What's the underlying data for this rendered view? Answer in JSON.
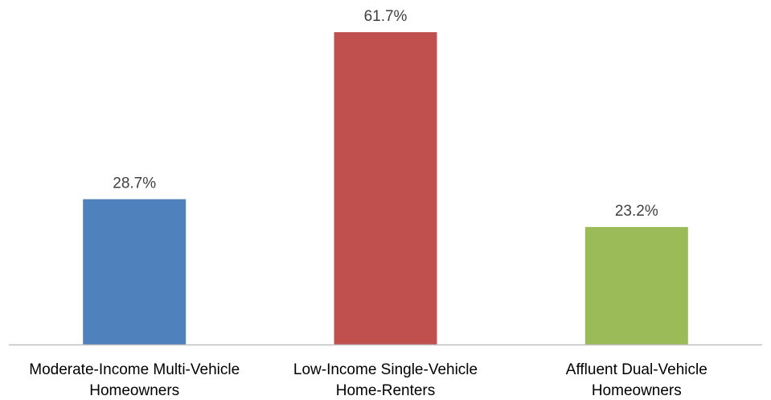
{
  "chart_data": {
    "type": "bar",
    "categories": [
      [
        "Moderate-Income Multi-Vehicle",
        "Homeowners"
      ],
      [
        "Low-Income Single-Vehicle",
        "Home-Renters"
      ],
      [
        "Affluent Dual-Vehicle",
        "Homeowners"
      ]
    ],
    "values": [
      28.7,
      61.7,
      23.2
    ],
    "value_labels": [
      "28.7%",
      "61.7%",
      "23.2%"
    ],
    "value_unit": "%",
    "bar_colors": [
      "#4f81bd",
      "#c0504d",
      "#9bbb59"
    ],
    "axis_color": "#bfbfbf",
    "ylim": [
      0,
      70
    ],
    "grid": false,
    "legend": false,
    "title": "",
    "xlabel": "",
    "ylabel": ""
  }
}
